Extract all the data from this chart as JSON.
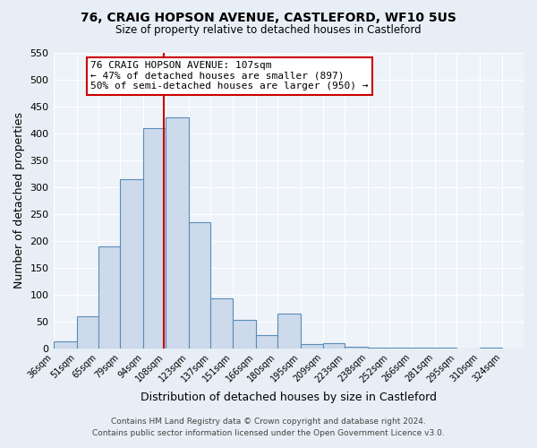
{
  "title": "76, CRAIG HOPSON AVENUE, CASTLEFORD, WF10 5US",
  "subtitle": "Size of property relative to detached houses in Castleford",
  "xlabel": "Distribution of detached houses by size in Castleford",
  "ylabel": "Number of detached properties",
  "bin_labels": [
    "36sqm",
    "51sqm",
    "65sqm",
    "79sqm",
    "94sqm",
    "108sqm",
    "123sqm",
    "137sqm",
    "151sqm",
    "166sqm",
    "180sqm",
    "195sqm",
    "209sqm",
    "223sqm",
    "238sqm",
    "252sqm",
    "266sqm",
    "281sqm",
    "295sqm",
    "310sqm",
    "324sqm"
  ],
  "bin_edges": [
    36,
    51,
    65,
    79,
    94,
    108,
    123,
    137,
    151,
    166,
    180,
    195,
    209,
    223,
    238,
    252,
    266,
    281,
    295,
    310,
    324
  ],
  "bar_heights": [
    13,
    60,
    190,
    315,
    410,
    430,
    235,
    93,
    53,
    25,
    65,
    8,
    10,
    3,
    2,
    1,
    1,
    1,
    0,
    2
  ],
  "bar_color": "#ccdaeb",
  "bar_edge_color": "#5b8db8",
  "vline_x": 107,
  "vline_color": "#cc0000",
  "annotation_title": "76 CRAIG HOPSON AVENUE: 107sqm",
  "annotation_line1": "← 47% of detached houses are smaller (897)",
  "annotation_line2": "50% of semi-detached houses are larger (950) →",
  "annotation_box_color": "#ffffff",
  "annotation_box_edge_color": "#cc0000",
  "ylim": [
    0,
    550
  ],
  "yticks": [
    0,
    50,
    100,
    150,
    200,
    250,
    300,
    350,
    400,
    450,
    500,
    550
  ],
  "footnote1": "Contains HM Land Registry data © Crown copyright and database right 2024.",
  "footnote2": "Contains public sector information licensed under the Open Government Licence v3.0.",
  "bg_color": "#e8eef5",
  "plot_bg_color": "#eef3f9"
}
